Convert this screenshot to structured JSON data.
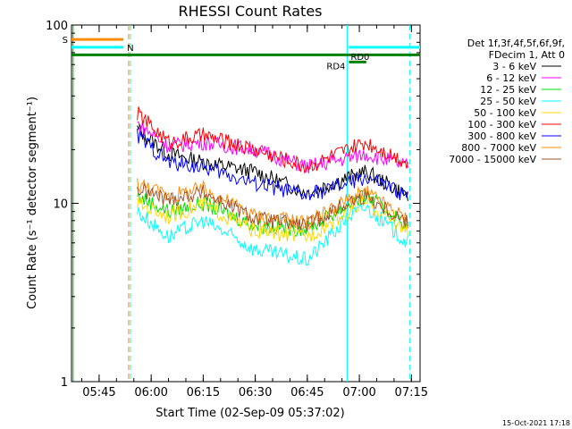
{
  "chart_data": {
    "type": "line",
    "title": "RHESSI Count Rates",
    "xlabel": "Start Time (02-Sep-09 05:37:02)",
    "ylabel": "Count Rate (s⁻¹ detector segment⁻¹)",
    "y_scale": "log",
    "ylim": [
      1,
      100
    ],
    "xlim": [
      "05:37:02",
      "07:17:30"
    ],
    "x_ticks": [
      "05:45",
      "06:00",
      "06:15",
      "06:30",
      "06:45",
      "07:00",
      "07:15"
    ],
    "y_ticks": [
      "1",
      "10",
      "100"
    ],
    "legend_header": [
      "Det 1f,3f,4f,5f,6f,9f,",
      "FDecim 1, Att 0"
    ],
    "legend_position": "right",
    "series": [
      {
        "name": "3 - 6 keV",
        "color": "#000000",
        "x": [
          "05:56",
          "06:05",
          "06:15",
          "06:30",
          "06:45",
          "06:57",
          "07:02",
          "07:14"
        ],
        "y": [
          26,
          19,
          17,
          15,
          11.5,
          14,
          15,
          11
        ]
      },
      {
        "name": "6 - 12 keV",
        "color": "#ff00ff",
        "x": [
          "05:56",
          "06:05",
          "06:15",
          "06:30",
          "06:45",
          "06:57",
          "07:02",
          "07:14"
        ],
        "y": [
          28,
          21,
          22,
          20,
          16,
          18,
          19,
          16
        ]
      },
      {
        "name": "12 - 25 keV",
        "color": "#00e000",
        "x": [
          "05:56",
          "06:05",
          "06:15",
          "06:30",
          "06:45",
          "06:57",
          "07:02",
          "07:14"
        ],
        "y": [
          11,
          9,
          10,
          7.5,
          7.2,
          9.8,
          11,
          7.5
        ]
      },
      {
        "name": "25 - 50 keV",
        "color": "#00ffff",
        "x": [
          "05:56",
          "06:05",
          "06:15",
          "06:30",
          "06:45",
          "06:57",
          "07:02",
          "07:14"
        ],
        "y": [
          9,
          6.5,
          8,
          5.5,
          4.8,
          8.5,
          9.5,
          6
        ]
      },
      {
        "name": "50 - 100 keV",
        "color": "#ffd700",
        "x": [
          "05:56",
          "06:05",
          "06:15",
          "06:30",
          "06:45",
          "06:57",
          "07:02",
          "07:14"
        ],
        "y": [
          10,
          8.5,
          9.8,
          7,
          6.5,
          9,
          10.2,
          7
        ]
      },
      {
        "name": "100 - 300 keV",
        "color": "#ff0000",
        "x": [
          "05:56",
          "06:05",
          "06:15",
          "06:30",
          "06:45",
          "06:57",
          "07:02",
          "07:14"
        ],
        "y": [
          32,
          22,
          24,
          20,
          16,
          20,
          22,
          17
        ]
      },
      {
        "name": "300 - 800 keV",
        "color": "#0000ff",
        "x": [
          "05:56",
          "06:05",
          "06:15",
          "06:30",
          "06:45",
          "06:57",
          "07:02",
          "07:14"
        ],
        "y": [
          24,
          17,
          16,
          13,
          11,
          13,
          14,
          11
        ]
      },
      {
        "name": "800 - 7000 keV",
        "color": "#ff8c00",
        "x": [
          "05:56",
          "06:05",
          "06:15",
          "06:30",
          "06:45",
          "06:57",
          "07:02",
          "07:14"
        ],
        "y": [
          13,
          11,
          12,
          8.5,
          7.8,
          10.5,
          11.5,
          8
        ]
      },
      {
        "name": "7000 - 15000 keV",
        "color": "#a0522d",
        "x": [
          "05:56",
          "06:05",
          "06:15",
          "06:30",
          "06:45",
          "06:57",
          "07:02",
          "07:14"
        ],
        "y": [
          12,
          10.5,
          11.5,
          8.2,
          7.5,
          10.2,
          11,
          7.8
        ]
      }
    ],
    "annotations": [
      {
        "label": "S",
        "color": "#ff8c00",
        "x_start": "05:37:02",
        "x_end": "05:52:00",
        "y": 83
      },
      {
        "label": "N",
        "color": "#00ffff",
        "x_start": "05:37:02",
        "x_end": "05:52:00",
        "y": 75
      },
      {
        "label": "",
        "color": "#008000",
        "x_start": "05:37:02",
        "x_end": "07:17:30",
        "y": 68
      },
      {
        "label": "RD0",
        "color": "#00ffff",
        "x_start": "06:57:00",
        "x_end": "07:17:30",
        "y": 75
      },
      {
        "label": "RD4",
        "color": "#008000",
        "x_start": "06:57:00",
        "x_end": "07:02:00",
        "y": 62
      }
    ],
    "vlines": [
      {
        "x": "05:37:30",
        "color": "#00c000",
        "style": "solid"
      },
      {
        "x": "05:53:30",
        "color": "#ff8c00",
        "style": "dashed"
      },
      {
        "x": "05:54:00",
        "color": "#00ffff",
        "style": "dashed"
      },
      {
        "x": "06:56:30",
        "color": "#00ffff",
        "style": "solid"
      },
      {
        "x": "07:14:30",
        "color": "#00ffff",
        "style": "dashed"
      }
    ],
    "grid": false
  },
  "footer_date": "15-Oct-2021 17:18"
}
